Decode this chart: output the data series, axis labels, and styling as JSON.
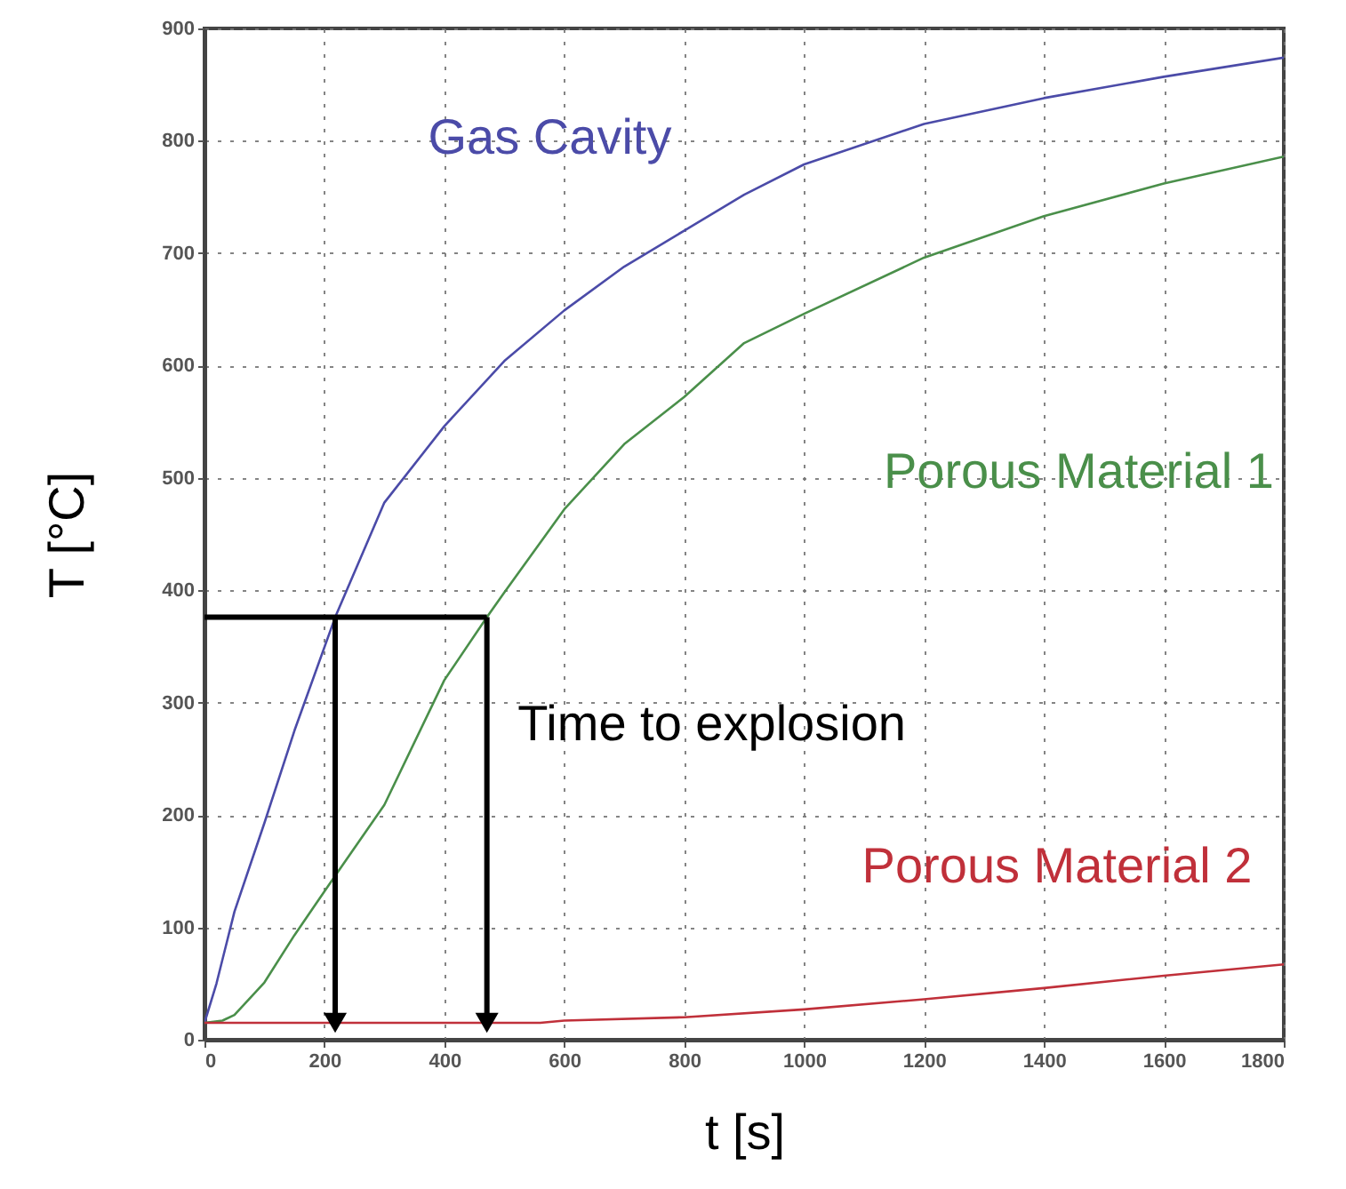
{
  "chart_data": {
    "type": "line",
    "xlabel": "t [s]",
    "ylabel": "T [°C]",
    "xlim": [
      0,
      1800
    ],
    "xticks": [
      0,
      200,
      400,
      600,
      800,
      1000,
      1200,
      1400,
      1600,
      1800
    ],
    "ylim": [
      0,
      900
    ],
    "yticks": [
      0,
      100,
      200,
      300,
      400,
      500,
      600,
      700,
      800,
      900
    ],
    "grid": true,
    "series": [
      {
        "name": "Gas Cavity",
        "color": "#4b4ba8",
        "x": [
          0,
          20,
          50,
          100,
          150,
          218,
          300,
          400,
          500,
          600,
          700,
          800,
          900,
          1000,
          1200,
          1400,
          1600,
          1800
        ],
        "values": [
          15,
          50,
          114,
          193,
          275,
          376,
          478,
          546,
          604,
          649,
          688,
          720,
          752,
          779,
          815,
          838,
          857,
          874
        ]
      },
      {
        "name": "Porous Material 1",
        "color": "#4a8f4a",
        "x": [
          0,
          30,
          50,
          100,
          150,
          218,
          300,
          400,
          471,
          500,
          600,
          700,
          800,
          900,
          1000,
          1200,
          1400,
          1600,
          1800
        ],
        "values": [
          15,
          17,
          22,
          51,
          93,
          146,
          209,
          320,
          376,
          398,
          472,
          530,
          572,
          620,
          646,
          696,
          733,
          762,
          786
        ]
      },
      {
        "name": "Porous Material 2",
        "color": "#c0303a",
        "x": [
          0,
          200,
          400,
          560,
          600,
          800,
          1000,
          1200,
          1400,
          1600,
          1800
        ],
        "values": [
          15,
          15,
          15,
          15,
          17,
          20,
          27,
          36,
          46,
          57,
          67
        ]
      }
    ],
    "ref_lines": [
      {
        "axis": "y",
        "value": 376
      }
    ],
    "annotations": [
      "Time to explosion"
    ]
  }
}
